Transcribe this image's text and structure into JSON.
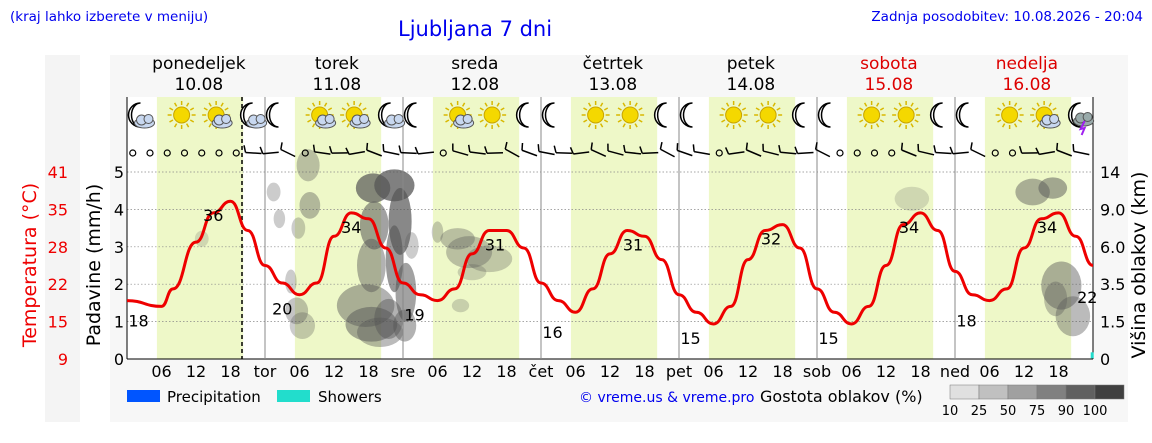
{
  "header": {
    "left_note": "(kraj lahko izberete v meniju)",
    "title": "Ljubljana 7 dni",
    "updated": "Zadnja posodobitev: 10.08.2026 - 20:04"
  },
  "days": [
    {
      "name": "ponedeljek",
      "date": "10.08",
      "weekend": false,
      "abbr": ""
    },
    {
      "name": "torek",
      "date": "11.08",
      "weekend": false,
      "abbr": "tor"
    },
    {
      "name": "sreda",
      "date": "12.08",
      "weekend": false,
      "abbr": "sre"
    },
    {
      "name": "četrtek",
      "date": "13.08",
      "weekend": false,
      "abbr": "čet"
    },
    {
      "name": "petek",
      "date": "14.08",
      "weekend": false,
      "abbr": "pet"
    },
    {
      "name": "sobota",
      "date": "15.08",
      "weekend": true,
      "abbr": "sob"
    },
    {
      "name": "nedelja",
      "date": "16.08",
      "weekend": true,
      "abbr": "ned"
    }
  ],
  "hour_ticks": [
    "06",
    "12",
    "18"
  ],
  "weather_icons": [
    [
      "moon-cloud-icon",
      "sun-icon",
      "sun-cloud-icon",
      "moon-cloud-icon"
    ],
    [
      "moon-icon",
      "sun-cloud-icon",
      "sun-cloud-icon",
      "moon-cloud-icon"
    ],
    [
      "moon-icon",
      "sun-cloud-icon",
      "sun-icon",
      "moon-icon"
    ],
    [
      "moon-icon",
      "sun-icon",
      "sun-icon",
      "moon-icon"
    ],
    [
      "moon-icon",
      "sun-icon",
      "sun-icon",
      "moon-icon"
    ],
    [
      "moon-icon",
      "sun-icon",
      "sun-icon",
      "moon-icon"
    ],
    [
      "moon-icon",
      "sun-icon",
      "sun-cloud-icon",
      "storm-icon"
    ]
  ],
  "axes": {
    "left_temp_label": "Temperatura (°C)",
    "left_temp_ticks": [
      "41",
      "35",
      "28",
      "22",
      "15",
      "9"
    ],
    "left_precip_label": "Padavine (mm/h)",
    "left_precip_ticks": [
      "5",
      "4",
      "3",
      "2",
      "1",
      "0"
    ],
    "right_label": "Višina oblakov (km)",
    "right_ticks": [
      "14",
      "9.0",
      "6.0",
      "3.5",
      "1.5",
      "0"
    ]
  },
  "legend": {
    "precip": "Precipitation",
    "showers": "Showers",
    "credit": "© vreme.us & vreme.pro",
    "cloud_title": "Gostota oblakov (%)",
    "cloud_levels": [
      "10",
      "25",
      "50",
      "75",
      "90",
      "100"
    ]
  },
  "colors": {
    "temp_line": "#ee0000",
    "daytime": "#eef8c8",
    "weekend_text": "#dd0000",
    "header_blue": "#0000ee",
    "precip": "#0055ff",
    "showers": "#22ddcc"
  },
  "chart_data": {
    "type": "line",
    "x_unit": "hours from 10.08 00:00",
    "temperature_c": [
      [
        0,
        19
      ],
      [
        6,
        18
      ],
      [
        8,
        21
      ],
      [
        12,
        29
      ],
      [
        15,
        34
      ],
      [
        18,
        36
      ],
      [
        21,
        31
      ],
      [
        24,
        25
      ],
      [
        27,
        22
      ],
      [
        30,
        20
      ],
      [
        33,
        22
      ],
      [
        36,
        30
      ],
      [
        39,
        34
      ],
      [
        42,
        33
      ],
      [
        45,
        28
      ],
      [
        48,
        22
      ],
      [
        51,
        20
      ],
      [
        54,
        19
      ],
      [
        57,
        21
      ],
      [
        60,
        27
      ],
      [
        63,
        31
      ],
      [
        66,
        31
      ],
      [
        69,
        28
      ],
      [
        72,
        22
      ],
      [
        75,
        19
      ],
      [
        78,
        17
      ],
      [
        81,
        21
      ],
      [
        84,
        27
      ],
      [
        87,
        31
      ],
      [
        90,
        30
      ],
      [
        93,
        26
      ],
      [
        96,
        20
      ],
      [
        99,
        17
      ],
      [
        102,
        15
      ],
      [
        105,
        18
      ],
      [
        108,
        26
      ],
      [
        111,
        31
      ],
      [
        114,
        32
      ],
      [
        117,
        28
      ],
      [
        120,
        21
      ],
      [
        123,
        17
      ],
      [
        126,
        15
      ],
      [
        129,
        18
      ],
      [
        132,
        25
      ],
      [
        135,
        32
      ],
      [
        138,
        34
      ],
      [
        141,
        31
      ],
      [
        144,
        24
      ],
      [
        147,
        20
      ],
      [
        150,
        19
      ],
      [
        153,
        21
      ],
      [
        156,
        28
      ],
      [
        159,
        33
      ],
      [
        162,
        34
      ],
      [
        165,
        30
      ],
      [
        168,
        25
      ]
    ],
    "temperature_labels": [
      {
        "x": 2,
        "value": "18"
      },
      {
        "x": 15,
        "value": "36"
      },
      {
        "x": 27,
        "value": "20"
      },
      {
        "x": 39,
        "value": "34"
      },
      {
        "x": 50,
        "value": "19"
      },
      {
        "x": 64,
        "value": "31"
      },
      {
        "x": 74,
        "value": "16"
      },
      {
        "x": 88,
        "value": "31"
      },
      {
        "x": 98,
        "value": "15"
      },
      {
        "x": 112,
        "value": "32"
      },
      {
        "x": 122,
        "value": "15"
      },
      {
        "x": 136,
        "value": "34"
      },
      {
        "x": 146,
        "value": "18"
      },
      {
        "x": 160,
        "value": "34"
      },
      {
        "x": 167,
        "value": "22"
      }
    ],
    "xlabel": "",
    "ylabel": "Temperatura (°C)",
    "ylim_temp": [
      9,
      41
    ],
    "ylim_precip": [
      0,
      5
    ],
    "grid": true,
    "now_marker_hour": 20
  }
}
